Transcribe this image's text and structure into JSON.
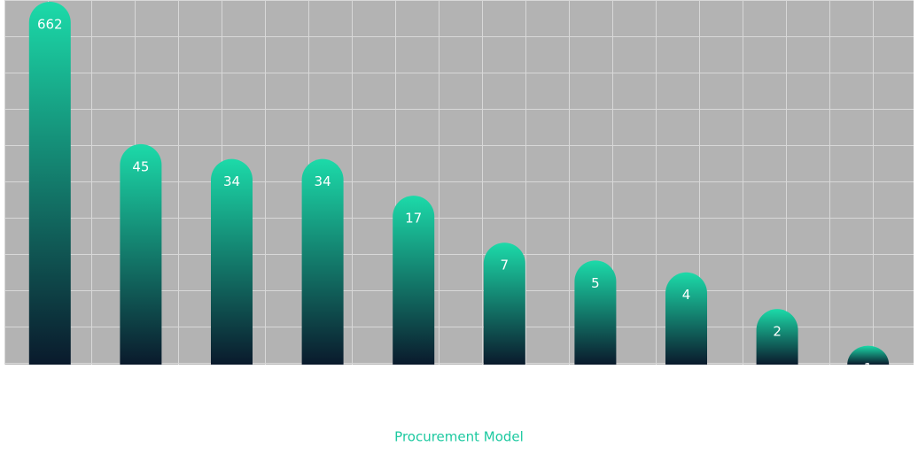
{
  "chart_data": {
    "type": "bar",
    "x_label": "Procurement Model",
    "categories": [
      null,
      null,
      null,
      null,
      null,
      null,
      null,
      null,
      null,
      null
    ],
    "values": [
      662,
      45,
      34,
      34,
      17,
      7,
      5,
      4,
      2,
      1
    ],
    "log_scale": true,
    "ylim": [
      0.7,
      662
    ],
    "color_top": "#1cdaa9",
    "color_bottom": "#0a1a2c",
    "grid": true
  }
}
